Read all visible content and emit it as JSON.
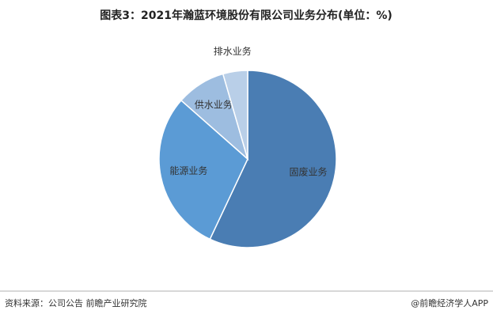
{
  "chart_data": {
    "type": "pie",
    "title": "图表3：2021年瀚蓝环境股份有限公司业务分布(单位：%)",
    "categories": [
      "固废业务",
      "能源业务",
      "供水业务",
      "排水业务"
    ],
    "values": [
      57,
      29.5,
      9,
      4.5
    ],
    "colors": [
      "#4a7db3",
      "#5b9bd5",
      "#9dbde0",
      "#b9cfe8"
    ],
    "source": "资料来源：公司公告 前瞻产业研究院",
    "credit": "@前瞻经济学人APP"
  }
}
